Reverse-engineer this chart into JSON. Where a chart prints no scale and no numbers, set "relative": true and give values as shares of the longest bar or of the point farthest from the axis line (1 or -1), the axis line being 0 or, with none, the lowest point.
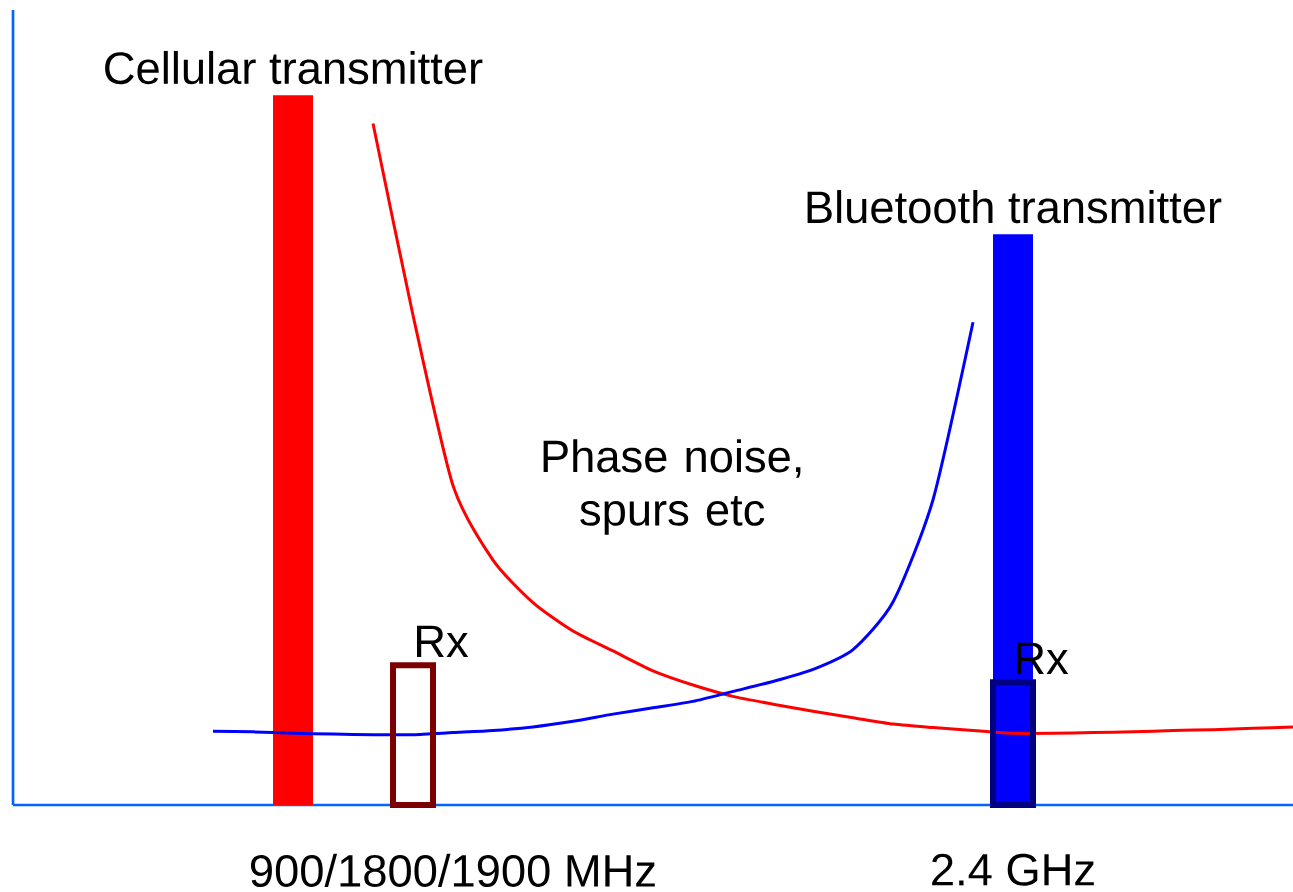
{
  "chart_data": {
    "type": "bar",
    "relative": true,
    "categories": [
      null,
      null,
      null,
      null,
      null,
      null,
      null,
      null,
      null,
      null,
      null,
      "900/1800/1900 MHz",
      null,
      null,
      null,
      null,
      null,
      null,
      null,
      null,
      null,
      null,
      null,
      null,
      null,
      "2.4 GHz",
      null,
      null,
      null,
      null,
      null,
      null,
      null
    ],
    "series": [
      {
        "name": "Cellular transmitter",
        "color": "#ff0000",
        "values": [
          null,
          null,
          null,
          null,
          null,
          null,
          null,
          1,
          null,
          null,
          null,
          null,
          null,
          null,
          null,
          null,
          null,
          null,
          null,
          null,
          null,
          null,
          null,
          null,
          null,
          null,
          null,
          null,
          null,
          null,
          null,
          null,
          null
        ]
      },
      {
        "name": "Bluetooth transmitter",
        "color": "#0000ff",
        "values": [
          null,
          null,
          null,
          null,
          null,
          null,
          null,
          null,
          null,
          null,
          null,
          null,
          null,
          null,
          null,
          null,
          null,
          null,
          null,
          null,
          null,
          null,
          null,
          null,
          null,
          0.804,
          null,
          null,
          null,
          null,
          null,
          null,
          null
        ]
      },
      {
        "type": "line",
        "color": "#ff0000",
        "values": [
          null,
          null,
          null,
          null,
          null,
          null,
          null,
          null,
          null,
          0.96,
          0.69,
          0.45,
          0.345,
          0.285,
          0.245,
          0.217,
          0.189,
          0.169,
          0.153,
          0.142,
          0.132,
          0.123,
          0.114,
          0.109,
          0.105,
          0.101,
          0.101,
          0.102,
          0.103,
          0.105,
          0.106,
          0.108,
          0.11
        ]
      },
      {
        "type": "line",
        "color": "#0000ff",
        "values": [
          null,
          null,
          null,
          null,
          null,
          0.104,
          0.103,
          0.101,
          0.1,
          0.099,
          0.099,
          0.102,
          0.105,
          0.11,
          0.118,
          0.128,
          0.137,
          0.146,
          0.16,
          0.174,
          0.191,
          0.219,
          0.286,
          0.43,
          0.68,
          null,
          null,
          null,
          null,
          null,
          null,
          null,
          null
        ]
      },
      {
        "name": "Rx",
        "color": "#7b0000",
        "line_style": "solid",
        "values": [
          null,
          null,
          null,
          null,
          null,
          null,
          null,
          null,
          null,
          null,
          0.197,
          null,
          null,
          null,
          null,
          null,
          null,
          null,
          null,
          null,
          null,
          null,
          null,
          null,
          null,
          null,
          null,
          null,
          null,
          null,
          null,
          null,
          null
        ]
      },
      {
        "name": "Rx",
        "color": "#000080",
        "line_style": "solid",
        "values": [
          null,
          null,
          null,
          null,
          null,
          null,
          null,
          null,
          null,
          null,
          null,
          null,
          null,
          null,
          null,
          null,
          null,
          null,
          null,
          null,
          null,
          null,
          null,
          null,
          null,
          0.173,
          null,
          null,
          null,
          null,
          null,
          null,
          null
        ]
      }
    ],
    "annotations": [
      "Phase noise, spurs etc"
    ]
  }
}
